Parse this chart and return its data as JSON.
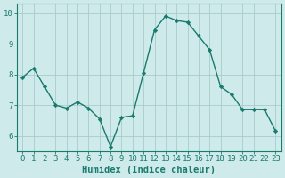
{
  "x": [
    0,
    1,
    2,
    3,
    4,
    5,
    6,
    7,
    8,
    9,
    10,
    11,
    12,
    13,
    14,
    15,
    16,
    17,
    18,
    19,
    20,
    21,
    22,
    23
  ],
  "y": [
    7.9,
    8.2,
    7.6,
    7.0,
    6.9,
    7.1,
    6.9,
    6.55,
    5.65,
    6.6,
    6.65,
    8.05,
    9.45,
    9.9,
    9.75,
    9.7,
    9.25,
    8.8,
    7.6,
    7.35,
    6.85,
    6.85,
    6.85,
    6.15
  ],
  "line_color": "#1a7a6e",
  "marker": "D",
  "marker_size": 2.2,
  "bg_color": "#ceeaea",
  "grid_color": "#a8cccc",
  "xlabel": "Humidex (Indice chaleur)",
  "ylim": [
    5.5,
    10.3
  ],
  "xlim": [
    -0.5,
    23.5
  ],
  "yticks": [
    6,
    7,
    8,
    9,
    10
  ],
  "xticks": [
    0,
    1,
    2,
    3,
    4,
    5,
    6,
    7,
    8,
    9,
    10,
    11,
    12,
    13,
    14,
    15,
    16,
    17,
    18,
    19,
    20,
    21,
    22,
    23
  ],
  "tick_fontsize": 6.5,
  "xlabel_fontsize": 7.5,
  "axis_color": "#1a7a6e",
  "line_width": 1.0
}
